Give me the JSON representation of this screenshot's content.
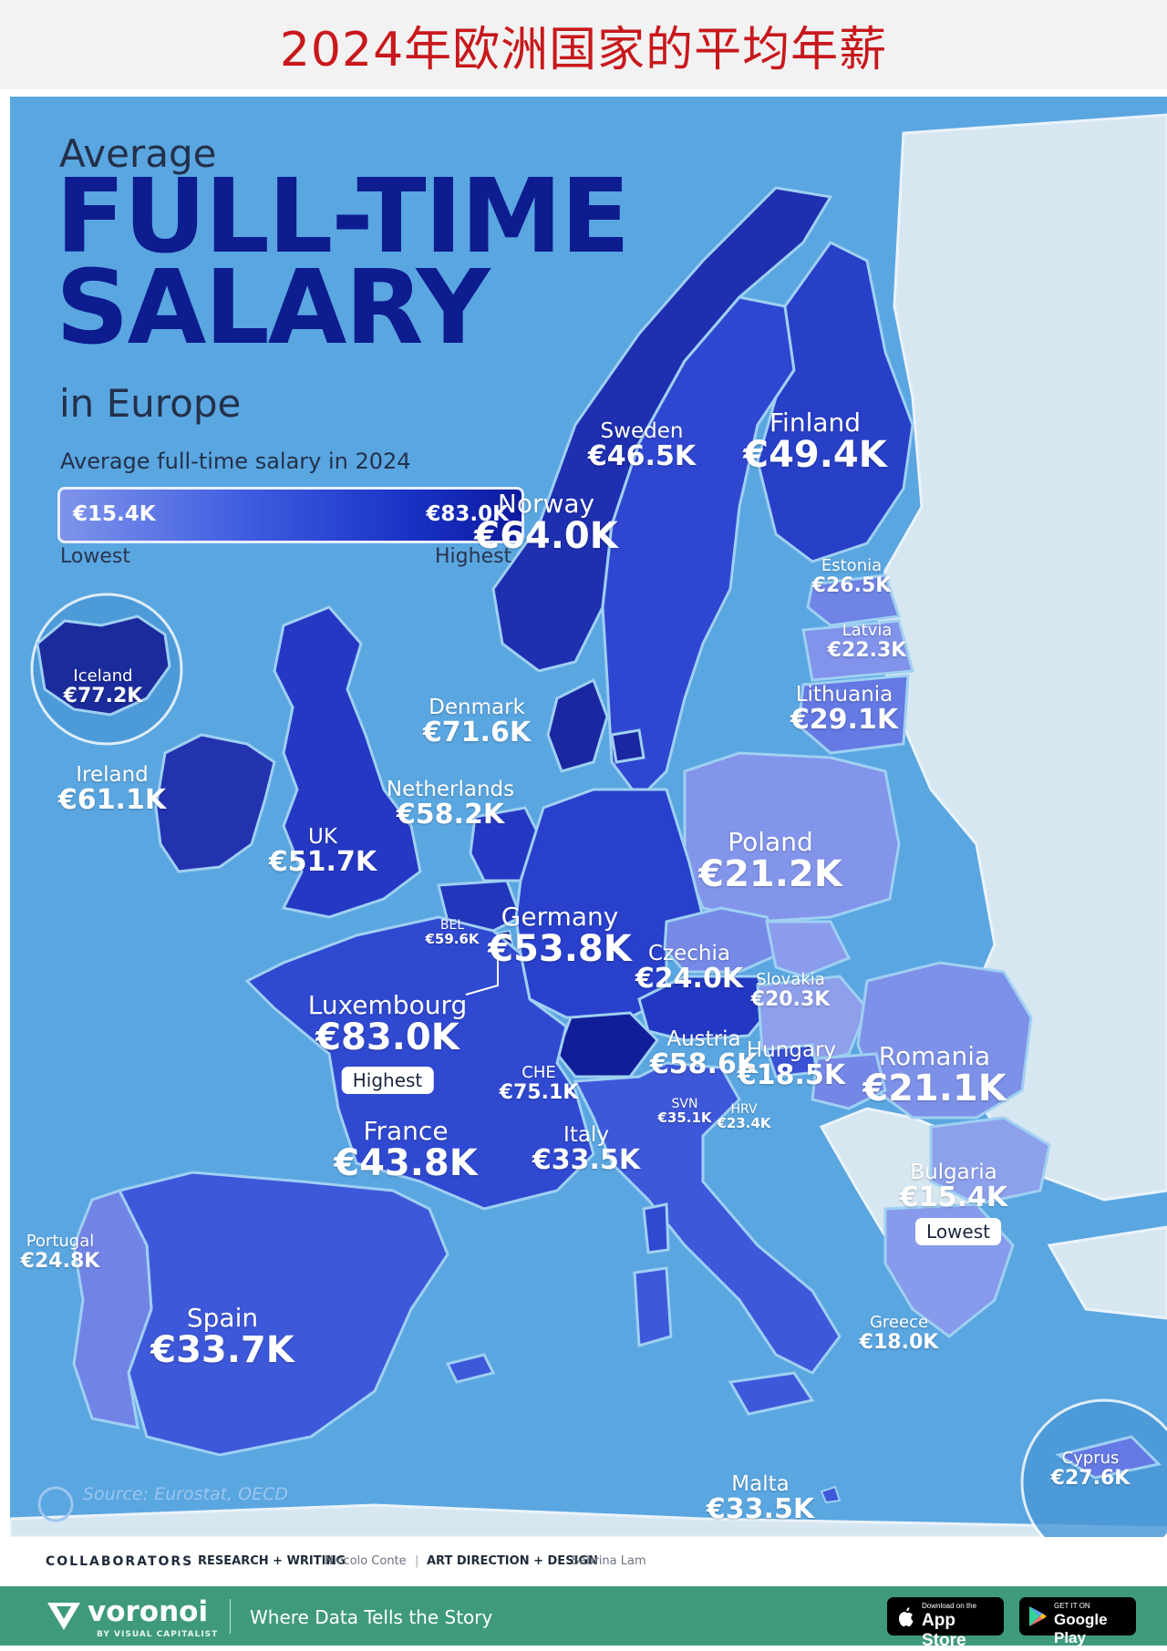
{
  "page_title": "2024年欧洲国家的平均年薪",
  "header": {
    "line1": "Average",
    "line2": "FULL-TIME",
    "line3": "SALARY",
    "line4": "in Europe"
  },
  "legend": {
    "title": "Average full-time salary in 2024",
    "min_value": "€15.4K",
    "max_value": "€83.0K",
    "min_label": "Lowest",
    "max_label": "Highest",
    "gradient_colors": [
      "#7f94ea",
      "#3f5de0",
      "#1a33c6",
      "#0c1aa0"
    ]
  },
  "colors": {
    "sea": "#5aa6e1",
    "non_data_land": "#d7e7f1",
    "title_red": "#c8181c",
    "header_blue": "#0d1c8f",
    "footer_green": "#3f9a7c"
  },
  "countries": {
    "iceland": {
      "name": "Iceland",
      "value": "€77.2K"
    },
    "ireland": {
      "name": "Ireland",
      "value": "€61.1K"
    },
    "uk": {
      "name": "UK",
      "value": "€51.7K"
    },
    "norway": {
      "name": "Norway",
      "value": "€64.0K"
    },
    "sweden": {
      "name": "Sweden",
      "value": "€46.5K"
    },
    "finland": {
      "name": "Finland",
      "value": "€49.4K"
    },
    "estonia": {
      "name": "Estonia",
      "value": "€26.5K"
    },
    "latvia": {
      "name": "Latvia",
      "value": "€22.3K"
    },
    "lithuania": {
      "name": "Lithuania",
      "value": "€29.1K"
    },
    "denmark": {
      "name": "Denmark",
      "value": "€71.6K"
    },
    "netherlands": {
      "name": "Netherlands",
      "value": "€58.2K"
    },
    "belgium": {
      "name": "BEL",
      "value": "€59.6K"
    },
    "germany": {
      "name": "Germany",
      "value": "€53.8K"
    },
    "poland": {
      "name": "Poland",
      "value": "€21.2K"
    },
    "czechia": {
      "name": "Czechia",
      "value": "€24.0K"
    },
    "slovakia": {
      "name": "Slovakia",
      "value": "€20.3K"
    },
    "luxembourg": {
      "name": "Luxembourg",
      "value": "€83.0K",
      "badge": "Highest"
    },
    "austria": {
      "name": "Austria",
      "value": "€58.6K"
    },
    "hungary": {
      "name": "Hungary",
      "value": "€18.5K"
    },
    "romania": {
      "name": "Romania",
      "value": "€21.1K"
    },
    "switzerland": {
      "name": "CHE",
      "value": "€75.1K"
    },
    "slovenia": {
      "name": "SVN",
      "value": "€35.1K"
    },
    "croatia": {
      "name": "HRV",
      "value": "€23.4K"
    },
    "france": {
      "name": "France",
      "value": "€43.8K"
    },
    "italy": {
      "name": "Italy",
      "value": "€33.5K"
    },
    "bulgaria": {
      "name": "Bulgaria",
      "value": "€15.4K",
      "badge": "Lowest"
    },
    "portugal": {
      "name": "Portugal",
      "value": "€24.8K"
    },
    "spain": {
      "name": "Spain",
      "value": "€33.7K"
    },
    "greece": {
      "name": "Greece",
      "value": "€18.0K"
    },
    "cyprus": {
      "name": "Cyprus",
      "value": "€27.6K"
    },
    "malta": {
      "name": "Malta",
      "value": "€33.5K"
    }
  },
  "source": "Source: Eurostat, OECD",
  "collaborators": {
    "label": "COLLABORATORS",
    "research_label": "RESEARCH + WRITING",
    "research_name": "Niccolo Conte",
    "separator": "|",
    "design_label": "ART DIRECTION + DESIGN",
    "design_name": "Sabrina Lam"
  },
  "footer": {
    "brand": "voronoi",
    "brand_sub": "BY VISUAL CAPITALIST",
    "tagline": "Where Data Tells the Story",
    "app_store_small": "Download on the",
    "app_store": "App Store",
    "google_play_small": "GET IT ON",
    "google_play": "Google Play"
  }
}
